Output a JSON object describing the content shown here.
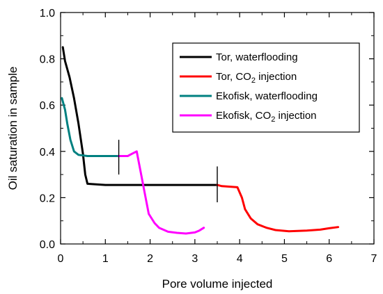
{
  "chart_data": {
    "type": "line",
    "title": "",
    "xlabel": "Pore volume injected",
    "ylabel": "Oil saturation in sample",
    "xlim": [
      0,
      7
    ],
    "ylim": [
      0,
      1.0
    ],
    "x_ticks": [
      0,
      1,
      2,
      3,
      4,
      5,
      6,
      7
    ],
    "y_ticks": [
      0.0,
      0.2,
      0.4,
      0.6,
      0.8,
      1.0
    ],
    "x_tick_labels": [
      "0",
      "1",
      "2",
      "3",
      "4",
      "5",
      "6",
      "7"
    ],
    "y_tick_labels": [
      "0.0",
      "0.2",
      "0.4",
      "0.6",
      "0.8",
      "1.0"
    ],
    "grid": false,
    "legend_position": "top-right",
    "series": [
      {
        "name": "Tor, waterflooding",
        "legend_main": "Tor, waterflooding",
        "legend_sub": "",
        "legend_tail": "",
        "color": "#000000",
        "points": [
          [
            0.05,
            0.85
          ],
          [
            0.1,
            0.79
          ],
          [
            0.2,
            0.72
          ],
          [
            0.3,
            0.63
          ],
          [
            0.4,
            0.52
          ],
          [
            0.5,
            0.39
          ],
          [
            0.55,
            0.3
          ],
          [
            0.6,
            0.26
          ],
          [
            1.0,
            0.255
          ],
          [
            2.0,
            0.255
          ],
          [
            3.0,
            0.255
          ],
          [
            3.5,
            0.255
          ]
        ]
      },
      {
        "name": "Tor, CO2 injection",
        "legend_main": "Tor, CO",
        "legend_sub": "2",
        "legend_tail": " injection",
        "color": "#ff0000",
        "points": [
          [
            3.5,
            0.255
          ],
          [
            3.6,
            0.25
          ],
          [
            3.95,
            0.245
          ],
          [
            4.05,
            0.2
          ],
          [
            4.12,
            0.15
          ],
          [
            4.25,
            0.11
          ],
          [
            4.4,
            0.085
          ],
          [
            4.6,
            0.07
          ],
          [
            4.8,
            0.06
          ],
          [
            5.1,
            0.055
          ],
          [
            5.5,
            0.058
          ],
          [
            5.8,
            0.062
          ],
          [
            6.0,
            0.068
          ],
          [
            6.2,
            0.073
          ]
        ]
      },
      {
        "name": "Ekofisk, waterflooding",
        "legend_main": "Ekofisk, waterflooding",
        "legend_sub": "",
        "legend_tail": "",
        "color": "#008080",
        "points": [
          [
            0.03,
            0.63
          ],
          [
            0.1,
            0.58
          ],
          [
            0.15,
            0.52
          ],
          [
            0.22,
            0.45
          ],
          [
            0.3,
            0.4
          ],
          [
            0.4,
            0.385
          ],
          [
            0.6,
            0.38
          ],
          [
            1.0,
            0.38
          ],
          [
            1.3,
            0.38
          ]
        ]
      },
      {
        "name": "Ekofisk, CO2 injection",
        "legend_main": "Ekofisk, CO",
        "legend_sub": "2",
        "legend_tail": " injection",
        "color": "#ff00ff",
        "points": [
          [
            1.3,
            0.38
          ],
          [
            1.5,
            0.38
          ],
          [
            1.6,
            0.39
          ],
          [
            1.7,
            0.4
          ],
          [
            1.75,
            0.35
          ],
          [
            1.82,
            0.28
          ],
          [
            1.9,
            0.2
          ],
          [
            1.97,
            0.13
          ],
          [
            2.1,
            0.09
          ],
          [
            2.2,
            0.07
          ],
          [
            2.4,
            0.053
          ],
          [
            2.6,
            0.048
          ],
          [
            2.8,
            0.045
          ],
          [
            3.0,
            0.05
          ],
          [
            3.1,
            0.058
          ],
          [
            3.2,
            0.07
          ]
        ]
      }
    ],
    "markers": [
      {
        "x": 1.3,
        "y_low": 0.3,
        "y_high": 0.45
      },
      {
        "x": 3.5,
        "y_low": 0.18,
        "y_high": 0.335
      }
    ]
  }
}
